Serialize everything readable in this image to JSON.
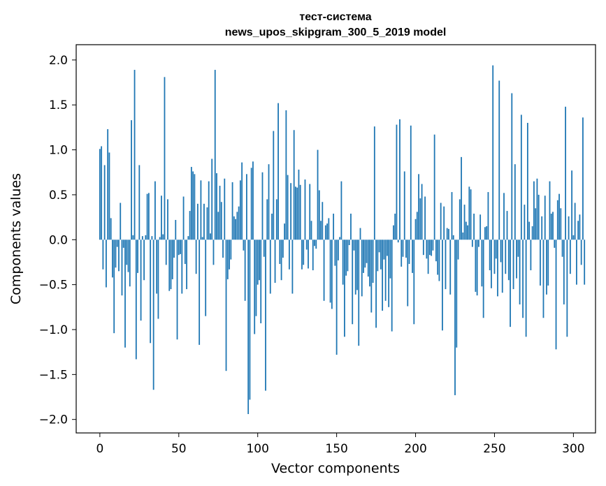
{
  "chart_data": {
    "type": "bar",
    "title": [
      "тест-система",
      "news_upos_skipgram_300_5_2019 model"
    ],
    "xlabel": "Vector components",
    "ylabel": "Components values",
    "xlim": [
      -15,
      314
    ],
    "ylim": [
      -2.15,
      2.17
    ],
    "xticks": [
      0,
      50,
      100,
      150,
      200,
      250,
      300
    ],
    "yticks": [
      2.0,
      1.5,
      1.0,
      0.5,
      0.0,
      -0.5,
      -1.0,
      -1.5,
      -2.0
    ],
    "xtick_labels": [
      "0",
      "50",
      "100",
      "150",
      "200",
      "250",
      "300"
    ],
    "ytick_labels": [
      "2.0",
      "1.5",
      "1.0",
      "0.5",
      "0.0",
      "−0.5",
      "−1.0",
      "−1.5",
      "−2.0"
    ],
    "grid": false,
    "bar_color": "#1f77b4",
    "values": [
      1.01,
      1.04,
      -0.33,
      0.83,
      -0.53,
      1.23,
      0.97,
      0.24,
      -0.42,
      -1.04,
      -0.31,
      -0.08,
      -0.35,
      0.41,
      -0.62,
      -0.09,
      -1.2,
      -0.28,
      -0.36,
      -0.52,
      1.33,
      0.05,
      1.89,
      -1.33,
      -0.37,
      0.83,
      -0.9,
      0.04,
      -0.45,
      0.05,
      0.51,
      0.52,
      -1.15,
      0.04,
      -1.67,
      0.65,
      -0.6,
      -0.88,
      0.03,
      0.49,
      0.06,
      1.81,
      -0.28,
      0.45,
      -0.57,
      -0.55,
      -0.44,
      -0.2,
      0.22,
      -1.11,
      -0.17,
      -0.16,
      -0.6,
      0.48,
      -0.27,
      -0.55,
      0.04,
      0.32,
      0.81,
      0.76,
      0.73,
      -0.38,
      0.4,
      -1.17,
      0.66,
      0.03,
      0.4,
      -0.85,
      0.36,
      0.65,
      0.07,
      0.9,
      -0.28,
      1.89,
      0.74,
      0.31,
      0.6,
      0.42,
      -0.2,
      0.68,
      -1.46,
      -0.44,
      -0.33,
      -0.22,
      0.64,
      0.26,
      0.23,
      0.31,
      0.37,
      0.66,
      0.86,
      -0.12,
      -0.68,
      0.73,
      -1.94,
      -1.78,
      0.8,
      0.87,
      -1.05,
      -0.85,
      -0.5,
      -0.45,
      -0.93,
      0.75,
      -0.19,
      -1.68,
      0.45,
      0.84,
      -0.6,
      0.29,
      1.21,
      -0.48,
      0.45,
      1.52,
      -0.27,
      -0.45,
      -0.2,
      0.18,
      1.44,
      0.72,
      -0.33,
      0.63,
      -0.6,
      1.22,
      0.59,
      0.58,
      0.78,
      0.61,
      -0.33,
      -0.28,
      0.67,
      -0.11,
      -0.32,
      0.62,
      0.21,
      -0.34,
      -0.07,
      -0.1,
      1.0,
      0.55,
      0.21,
      0.42,
      -0.68,
      0.16,
      0.18,
      0.24,
      -0.7,
      -0.77,
      0.29,
      -0.29,
      -1.28,
      -0.23,
      0.03,
      0.65,
      -0.5,
      -1.08,
      -0.4,
      -0.35,
      -0.06,
      0.29,
      -0.94,
      -0.12,
      -0.61,
      -0.56,
      -1.18,
      0.13,
      -0.63,
      -0.37,
      -0.31,
      -0.26,
      -0.41,
      -0.52,
      -0.81,
      -0.48,
      1.26,
      -0.98,
      -0.35,
      -0.14,
      -0.33,
      -0.79,
      -0.22,
      -0.68,
      -0.18,
      -0.75,
      -0.43,
      -1.02,
      0.16,
      0.29,
      1.28,
      -0.03,
      1.34,
      -0.3,
      -0.19,
      0.76,
      -0.2,
      -0.74,
      -0.27,
      1.27,
      -0.37,
      -0.94,
      0.23,
      0.31,
      0.73,
      0.46,
      0.62,
      -0.17,
      0.48,
      -0.21,
      -0.38,
      -0.17,
      -0.18,
      -0.12,
      1.17,
      -0.24,
      -0.39,
      -0.46,
      0.41,
      -1.01,
      0.37,
      -0.55,
      0.13,
      0.12,
      -0.61,
      0.53,
      0.05,
      -1.73,
      -1.2,
      -0.22,
      0.45,
      0.92,
      0.08,
      0.39,
      0.2,
      0.16,
      0.59,
      0.56,
      -0.08,
      0.29,
      -0.58,
      -0.62,
      -0.08,
      0.28,
      -0.52,
      -0.87,
      0.14,
      0.15,
      0.53,
      -0.34,
      -0.54,
      1.94,
      -0.38,
      -0.21,
      -0.63,
      1.77,
      -0.25,
      -0.59,
      0.52,
      -0.38,
      0.32,
      -0.45,
      -0.97,
      1.63,
      -0.55,
      0.84,
      -0.43,
      -0.19,
      -0.72,
      1.39,
      -0.87,
      0.39,
      -1.08,
      1.3,
      0.2,
      -0.34,
      0.15,
      0.65,
      0.35,
      0.68,
      0.5,
      -0.51,
      0.26,
      -0.87,
      0.49,
      -0.61,
      -0.51,
      0.65,
      0.29,
      0.31,
      -0.09,
      -1.22,
      0.44,
      0.51,
      0.35,
      -0.19,
      -0.72,
      1.48,
      -1.08,
      0.26,
      -0.38,
      0.77,
      0.05,
      0.41,
      -0.5,
      0.21,
      0.28,
      -0.28,
      1.36,
      -0.5
    ]
  }
}
